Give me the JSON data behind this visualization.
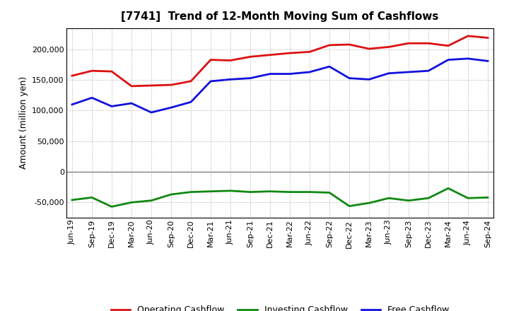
{
  "title": "[7741]  Trend of 12-Month Moving Sum of Cashflows",
  "ylabel": "Amount (million yen)",
  "x_labels": [
    "Jun-19",
    "Sep-19",
    "Dec-19",
    "Mar-20",
    "Jun-20",
    "Sep-20",
    "Dec-20",
    "Mar-21",
    "Jun-21",
    "Sep-21",
    "Dec-21",
    "Mar-22",
    "Jun-22",
    "Sep-22",
    "Dec-22",
    "Mar-23",
    "Jun-23",
    "Sep-23",
    "Dec-23",
    "Mar-24",
    "Jun-24",
    "Sep-24"
  ],
  "operating": [
    157000,
    165000,
    164000,
    140000,
    141000,
    142000,
    148000,
    183000,
    182000,
    188000,
    191000,
    194000,
    196000,
    207000,
    208000,
    201000,
    204000,
    210000,
    210000,
    206000,
    222000,
    219000
  ],
  "investing": [
    -46000,
    -42000,
    -57000,
    -50000,
    -47000,
    -37000,
    -33000,
    -32000,
    -31000,
    -33000,
    -32000,
    -33000,
    -33000,
    -34000,
    -56000,
    -51000,
    -43000,
    -47000,
    -43000,
    -27000,
    -43000,
    -42000
  ],
  "free": [
    110000,
    121000,
    107000,
    112000,
    97000,
    105000,
    114000,
    148000,
    151000,
    153000,
    160000,
    160000,
    163000,
    172000,
    153000,
    151000,
    161000,
    163000,
    165000,
    183000,
    185000,
    181000
  ],
  "ylim": [
    -75000,
    235000
  ],
  "yticks": [
    -50000,
    0,
    50000,
    100000,
    150000,
    200000
  ],
  "operating_color": "#dd1111",
  "investing_color": "#118811",
  "free_color": "#1111dd",
  "background_color": "#ffffff",
  "grid_color": "#aaaaaa",
  "line_width": 2.0,
  "title_fontsize": 11,
  "axis_fontsize": 8,
  "ylabel_fontsize": 9
}
